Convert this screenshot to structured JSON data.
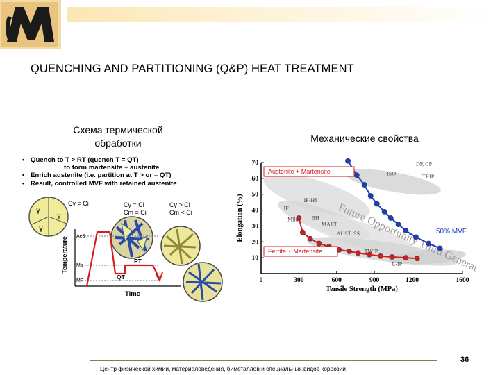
{
  "slide": {
    "title": "QUENCHING AND PARTITIONING (Q&P) HEAT TREATMENT",
    "left_header_line1": "Схема термической",
    "left_header_line2": "обработки",
    "right_header": "Механические свойства",
    "page_number": "36",
    "footer": "Центр физической химии, материаловедения, биметаллов и специальных видов коррозии"
  },
  "bullets": {
    "b1": "Quench to T > RT (quench T = QT)",
    "b1_cont": "to form martensite + austenite",
    "b2": "Enrich austenite (i.e. partition at T > or = QT)",
    "b3": "Result, controlled MVF with retained austenite"
  },
  "schematic": {
    "phase_gamma": "γ",
    "ci1": "C<sub>γ</sub> = C<sub>i</sub>",
    "label_c1": "Cγ = Ci",
    "label_c2a": "Cγ = Ci",
    "label_c2b": "Cm = Ci",
    "label_c3a": "Cγ > Ci",
    "label_c3b": "Cm < Ci",
    "ae3": "Ae3",
    "ms": "Ms",
    "mf": "MF",
    "qt": "QT",
    "pt": "PT",
    "ylabel": "Temperature",
    "xlabel": "Time"
  },
  "chart_data": {
    "type": "scatter",
    "xlabel": "Tensile Strength (MPa)",
    "ylabel": "Elongation (%)",
    "xlim": [
      0,
      1600
    ],
    "ylim": [
      0,
      70
    ],
    "x_ticks": [
      "0",
      "300",
      "600",
      "900",
      "1200",
      "1600"
    ],
    "y_ticks": [
      "10",
      "20",
      "30",
      "40",
      "50",
      "60",
      "70"
    ],
    "grid": false,
    "region_labels": [
      "IF",
      "IF-HS",
      "Mild",
      "BH",
      "ISO",
      "TRIP",
      "DP, CP",
      "MART",
      "AUST. SS",
      "TWIP",
      "L-IP"
    ],
    "watermark": "Future Opportunity Third Generation AHSS",
    "series": [
      {
        "name": "Austenite + Martensite",
        "color": "#1a3fc4",
        "points": [
          [
            690,
            71
          ],
          [
            760,
            62
          ],
          [
            820,
            56
          ],
          [
            870,
            49
          ],
          [
            920,
            44
          ],
          [
            980,
            39
          ],
          [
            1030,
            35
          ],
          [
            1090,
            31
          ],
          [
            1150,
            27
          ],
          [
            1230,
            23
          ],
          [
            1330,
            19
          ],
          [
            1420,
            16
          ]
        ]
      },
      {
        "name": "Ferrite + Martensite",
        "color": "#d11f1f",
        "points": [
          [
            300,
            35
          ],
          [
            330,
            26
          ],
          [
            390,
            22
          ],
          [
            460,
            19
          ],
          [
            540,
            17
          ],
          [
            620,
            15
          ],
          [
            700,
            14
          ],
          [
            770,
            13
          ],
          [
            860,
            12
          ],
          [
            950,
            11
          ],
          [
            1040,
            10.5
          ],
          [
            1150,
            10
          ],
          [
            1240,
            9.5
          ]
        ]
      }
    ],
    "annotation": "50% MVF"
  }
}
